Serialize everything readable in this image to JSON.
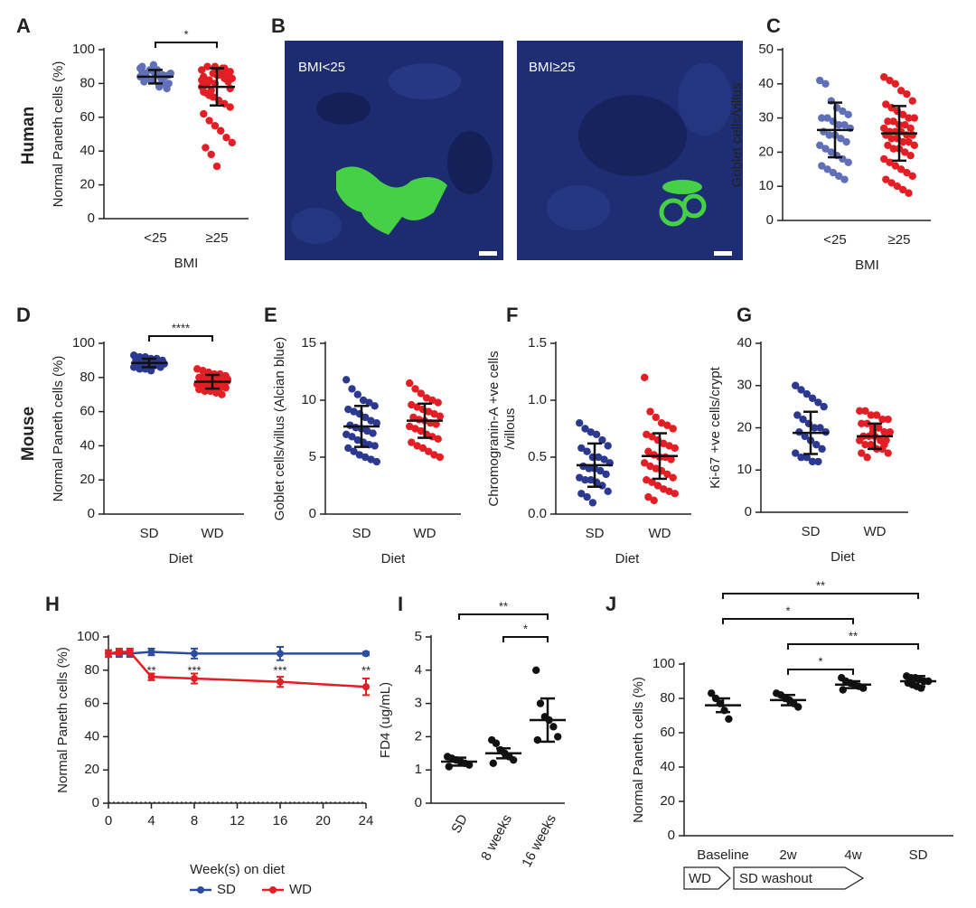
{
  "row_labels": [
    "Human",
    "Mouse"
  ],
  "chart_data": [
    {
      "panel": "A",
      "type": "dot",
      "ylabel": "Normal Paneth cells (%)",
      "xlabel": "BMI",
      "ylim": [
        0,
        100
      ],
      "yticks": [
        0,
        20,
        40,
        60,
        80,
        100
      ],
      "series": [
        {
          "name": "<25",
          "color": "#6070b8",
          "values": [
            84,
            86,
            82,
            88,
            85,
            80,
            90,
            83,
            87,
            79,
            84,
            86,
            81,
            88,
            85,
            83,
            77,
            89,
            84,
            82,
            86,
            80,
            85,
            87,
            83,
            91,
            78,
            84
          ],
          "mean": 84,
          "error": 4
        },
        {
          "name": "≥25",
          "color": "#e31e24",
          "values": [
            88,
            90,
            86,
            85,
            89,
            87,
            84,
            82,
            80,
            88,
            86,
            83,
            79,
            76,
            85,
            87,
            81,
            78,
            74,
            72,
            70,
            68,
            66,
            62,
            58,
            55,
            52,
            48,
            45,
            42,
            38,
            31,
            89,
            84,
            82,
            80,
            86,
            88,
            83,
            77,
            75,
            73,
            90,
            87,
            85
          ],
          "mean": 78,
          "error": 11
        }
      ],
      "significance": [
        {
          "between": [
            0,
            1
          ],
          "label": "*"
        }
      ]
    },
    {
      "panel": "B",
      "type": "image",
      "labels": [
        "BMI<25",
        "BMI≥25"
      ]
    },
    {
      "panel": "C",
      "type": "dot",
      "ylabel": "Goblet cells/villus",
      "xlabel": "BMI",
      "ylim": [
        0,
        50
      ],
      "yticks": [
        0,
        10,
        20,
        30,
        40,
        50
      ],
      "series": [
        {
          "name": "<25",
          "color": "#6070b8",
          "values": [
            41,
            40,
            35,
            33,
            32,
            31,
            30,
            30,
            29,
            28,
            28,
            27,
            26,
            25,
            25,
            24,
            23,
            22,
            21,
            20,
            19,
            18,
            17,
            16,
            15,
            14,
            13,
            12
          ],
          "mean": 26.5,
          "error": 8
        },
        {
          "name": "≥25",
          "color": "#e31e24",
          "values": [
            42,
            41,
            40,
            38,
            37,
            35,
            34,
            33,
            32,
            31,
            30,
            30,
            29,
            29,
            28,
            28,
            27,
            27,
            26,
            26,
            26,
            25,
            25,
            25,
            24,
            24,
            23,
            23,
            22,
            22,
            21,
            21,
            20,
            19,
            18,
            17,
            16,
            15,
            14,
            13,
            12,
            11,
            10,
            9,
            8
          ],
          "mean": 25.5,
          "error": 8
        }
      ]
    },
    {
      "panel": "D",
      "type": "dot",
      "ylabel": "Normal Paneth cells (%)",
      "xlabel": "Diet",
      "ylim": [
        0,
        100
      ],
      "yticks": [
        0,
        20,
        40,
        60,
        80,
        100
      ],
      "series": [
        {
          "name": "SD",
          "color": "#2b3990",
          "values": [
            93,
            92,
            92,
            91,
            91,
            90,
            90,
            90,
            89,
            89,
            89,
            88,
            88,
            88,
            87,
            87,
            86,
            86,
            85,
            85,
            84,
            88
          ],
          "mean": 88.5,
          "error": 2.5
        },
        {
          "name": "WD",
          "color": "#e31e24",
          "values": [
            85,
            84,
            83,
            82,
            82,
            81,
            80,
            80,
            79,
            79,
            78,
            78,
            78,
            77,
            77,
            77,
            76,
            76,
            76,
            75,
            75,
            74,
            74,
            73,
            72,
            72,
            71,
            70,
            79,
            80
          ],
          "mean": 77.5,
          "error": 4
        }
      ],
      "significance": [
        {
          "between": [
            0,
            1
          ],
          "label": "****"
        }
      ]
    },
    {
      "panel": "E",
      "type": "dot",
      "ylabel": "Goblet cells/villus (Alcian blue)",
      "xlabel": "Diet",
      "ylim": [
        0,
        15
      ],
      "yticks": [
        0,
        5,
        10,
        15
      ],
      "series": [
        {
          "name": "SD",
          "color": "#2b3990",
          "values": [
            11.8,
            11,
            10.5,
            10,
            9.8,
            9.5,
            9.2,
            9,
            8.8,
            8.5,
            8.2,
            8,
            7.8,
            7.6,
            7.5,
            7.3,
            7.1,
            7,
            6.8,
            6.5,
            6.3,
            6.1,
            6,
            5.8,
            5.5,
            5.2,
            5,
            4.8,
            4.6
          ],
          "mean": 7.7,
          "error": 1.8
        },
        {
          "name": "WD",
          "color": "#e31e24",
          "values": [
            11.5,
            11,
            10.6,
            10.2,
            10,
            9.8,
            9.6,
            9.4,
            9.2,
            9,
            8.8,
            8.6,
            8.5,
            8.3,
            8.2,
            8,
            7.9,
            7.7,
            7.5,
            7.3,
            7,
            6.8,
            6.6,
            6.3,
            6,
            5.8,
            5.5,
            5.2,
            5
          ],
          "mean": 8.2,
          "error": 1.5
        }
      ]
    },
    {
      "panel": "F",
      "type": "dot",
      "ylabel": [
        "Chromogranin-A +ve cells",
        "/villous"
      ],
      "xlabel": "Diet",
      "ylim": [
        0,
        1.5
      ],
      "yticks": [
        {
          "value": 0,
          "label": "0.0"
        },
        0.5,
        {
          "value": 1,
          "label": "1.0"
        },
        1.5
      ],
      "series": [
        {
          "name": "SD",
          "color": "#2b3990",
          "values": [
            0.8,
            0.75,
            0.72,
            0.7,
            0.65,
            0.6,
            0.58,
            0.55,
            0.5,
            0.5,
            0.48,
            0.45,
            0.42,
            0.4,
            0.4,
            0.38,
            0.35,
            0.32,
            0.3,
            0.3,
            0.28,
            0.25,
            0.2,
            0.18,
            0.15,
            0.1
          ],
          "mean": 0.43,
          "error": 0.19
        },
        {
          "name": "WD",
          "color": "#e31e24",
          "values": [
            1.2,
            0.9,
            0.85,
            0.8,
            0.78,
            0.75,
            0.7,
            0.68,
            0.65,
            0.62,
            0.6,
            0.58,
            0.55,
            0.52,
            0.5,
            0.5,
            0.48,
            0.45,
            0.42,
            0.4,
            0.38,
            0.35,
            0.32,
            0.3,
            0.28,
            0.25,
            0.22,
            0.2,
            0.18,
            0.15,
            0.12
          ],
          "mean": 0.51,
          "error": 0.2
        }
      ]
    },
    {
      "panel": "G",
      "type": "dot",
      "ylabel": "Ki-67 +ve cells/crypt",
      "xlabel": "Diet",
      "ylim": [
        0,
        40
      ],
      "yticks": [
        0,
        10,
        20,
        30,
        40
      ],
      "series": [
        {
          "name": "SD",
          "color": "#2b3990",
          "values": [
            30,
            29,
            28,
            27,
            26,
            25,
            23,
            22,
            21,
            20,
            20,
            19,
            19,
            18,
            17,
            16,
            15,
            14,
            13,
            13,
            12,
            12
          ],
          "mean": 18.8,
          "error": 5
        },
        {
          "name": "WD",
          "color": "#e31e24",
          "values": [
            24,
            24,
            23,
            23,
            22,
            22,
            21,
            21,
            20,
            20,
            19,
            19,
            18,
            18,
            18,
            17,
            17,
            17,
            16,
            16,
            15,
            15,
            14,
            14,
            13,
            19,
            20,
            16
          ],
          "mean": 18,
          "error": 3
        }
      ]
    },
    {
      "panel": "H",
      "type": "line",
      "ylabel": "Normal Paneth cells (%)",
      "xlabel": "Week(s) on diet",
      "legend": "bottom",
      "x": [
        0,
        1,
        2,
        4,
        8,
        16,
        24
      ],
      "xlim": [
        0,
        24
      ],
      "xticks": [
        0,
        4,
        8,
        12,
        16,
        20,
        24
      ],
      "ylim": [
        0,
        100
      ],
      "yticks": [
        0,
        20,
        40,
        60,
        80,
        100
      ],
      "series": [
        {
          "name": "SD",
          "color": "#2b4d9e",
          "values": [
            90,
            90,
            90,
            91,
            90,
            90,
            90
          ],
          "errors": [
            2,
            2,
            2,
            2,
            3,
            4,
            1
          ]
        },
        {
          "name": "WD",
          "color": "#e31e24",
          "values": [
            90,
            91,
            91,
            76,
            75,
            73,
            70
          ],
          "errors": [
            2,
            2,
            2,
            2,
            3,
            3,
            5
          ]
        }
      ],
      "annotations": [
        {
          "x": 4,
          "label": "**"
        },
        {
          "x": 8,
          "label": "***"
        },
        {
          "x": 16,
          "label": "***"
        },
        {
          "x": 24,
          "label": "**"
        }
      ]
    },
    {
      "panel": "I",
      "type": "dot",
      "ylabel": "FD4 (ug/mL)",
      "ylim": [
        0,
        5
      ],
      "yticks": [
        0,
        1,
        2,
        3,
        4,
        5
      ],
      "series": [
        {
          "name": "SD",
          "color": "#111111",
          "values": [
            1.4,
            1.35,
            1.3,
            1.25,
            1.2,
            1.15,
            1.1
          ],
          "mean": 1.25,
          "error": 0.12
        },
        {
          "name": "8 weeks",
          "color": "#111111",
          "values": [
            1.9,
            1.8,
            1.6,
            1.5,
            1.4,
            1.3,
            1.2
          ],
          "mean": 1.5,
          "error": 0.15
        },
        {
          "name": "16 weeks",
          "color": "#111111",
          "values": [
            4,
            3,
            2.6,
            2.5,
            2.3,
            2,
            1.9
          ],
          "mean": 2.5,
          "error": 0.65
        }
      ],
      "significance": [
        {
          "between": [
            0,
            2
          ],
          "label": "**"
        },
        {
          "between": [
            1,
            2
          ],
          "label": "*"
        }
      ]
    },
    {
      "panel": "J",
      "type": "dot",
      "ylabel": "Normal Paneth cells (%)",
      "ylim": [
        0,
        100
      ],
      "yticks": [
        0,
        20,
        40,
        60,
        80,
        100
      ],
      "series": [
        {
          "name": "Baseline",
          "color": "#111111",
          "values": [
            83,
            80,
            77,
            73,
            68
          ],
          "mean": 76,
          "error": 4
        },
        {
          "name": "2w",
          "color": "#111111",
          "values": [
            83,
            82,
            80,
            79,
            77,
            75
          ],
          "mean": 79,
          "error": 3
        },
        {
          "name": "4w",
          "color": "#111111",
          "values": [
            92,
            90,
            89,
            88,
            87,
            86,
            85
          ],
          "mean": 88,
          "error": 2
        },
        {
          "name": "SD",
          "color": "#111111",
          "values": [
            93,
            92,
            92,
            91,
            90,
            90,
            89,
            88,
            87,
            86
          ],
          "mean": 90,
          "error": 3
        }
      ],
      "significance": [
        {
          "between": [
            0,
            3
          ],
          "label": "**"
        },
        {
          "between": [
            0,
            2
          ],
          "label": "*"
        },
        {
          "between": [
            1,
            3
          ],
          "label": "**"
        },
        {
          "between": [
            1,
            2
          ],
          "label": "*"
        }
      ],
      "phases": [
        "WD",
        "SD washout"
      ]
    }
  ]
}
